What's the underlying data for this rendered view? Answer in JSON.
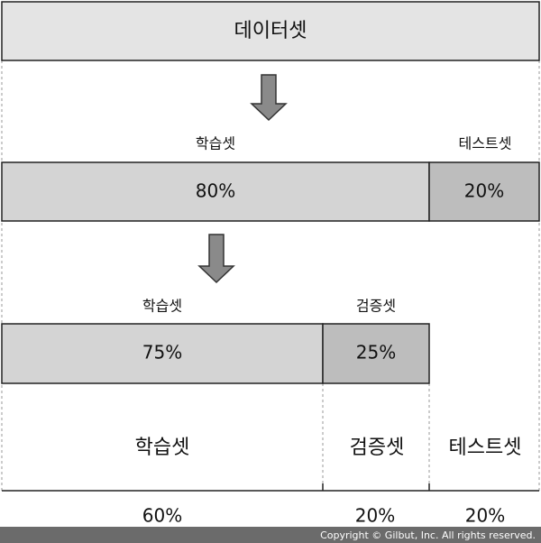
{
  "dataset": {
    "label": "데이터셋"
  },
  "split_1": {
    "train": {
      "label": "학습셋",
      "percent": "80%"
    },
    "test": {
      "label": "테스트셋",
      "percent": "20%"
    }
  },
  "split_2": {
    "train": {
      "label": "학습셋",
      "percent": "75%"
    },
    "validation": {
      "label": "검증셋",
      "percent": "25%"
    }
  },
  "final": {
    "train": {
      "label": "학습셋",
      "percent": "60%"
    },
    "validation": {
      "label": "검증셋",
      "percent": "20%"
    },
    "test": {
      "label": "테스트셋",
      "percent": "20%"
    }
  },
  "footer": "Copyright © Gilbut, Inc. All rights reserved."
}
